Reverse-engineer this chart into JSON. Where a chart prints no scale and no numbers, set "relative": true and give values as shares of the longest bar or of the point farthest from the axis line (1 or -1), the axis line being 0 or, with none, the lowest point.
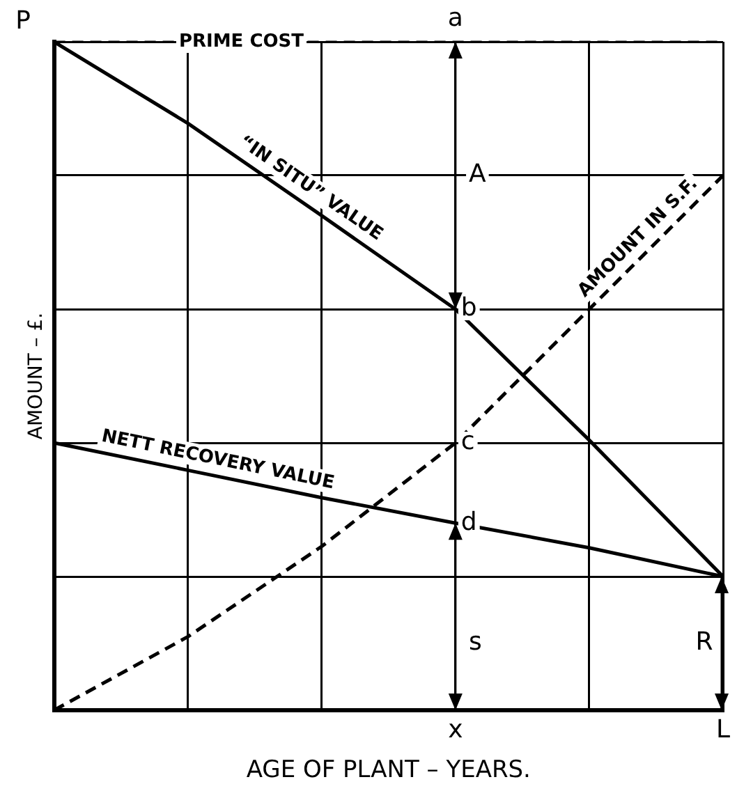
{
  "chart_data": {
    "type": "line",
    "relative": true,
    "xlabel": "AGE OF PLANT – YEARS.",
    "ylabel": "AMOUNT – £.",
    "categories": [
      null,
      null,
      null,
      "x",
      null,
      "L"
    ],
    "series": [
      {
        "name": "“IN SITU” VALUE",
        "color": "#000000",
        "values": [
          1,
          0.878,
          0.74,
          0.6,
          0.404,
          0.2
        ]
      },
      {
        "name": "NETT RECOVERY VALUE",
        "color": "#000000",
        "values": [
          0.4,
          0.359,
          0.318,
          0.28,
          0.243,
          0.2
        ]
      },
      {
        "name": "AMOUNT IN S.F.",
        "color": "#000000",
        "line_style": "dashed",
        "values": [
          0,
          0.11,
          0.245,
          0.4,
          0.6,
          0.8
        ]
      }
    ],
    "ref_lines": [
      {
        "axis": "y",
        "value": 1,
        "label": "PRIME COST",
        "line_style": "dashed",
        "color": "#000000"
      }
    ],
    "annotations": [
      "P",
      {
        "text": "a",
        "x": "x",
        "y": 1
      },
      "A",
      {
        "text": "b",
        "x": "x",
        "y": 0.6
      },
      {
        "text": "c",
        "x": "x",
        "y": 0.4
      },
      {
        "text": "d",
        "x": "x",
        "y": 0.28
      },
      "s",
      "R"
    ],
    "grid": true,
    "legend": false,
    "marker": "none",
    "line_style": "solid"
  }
}
